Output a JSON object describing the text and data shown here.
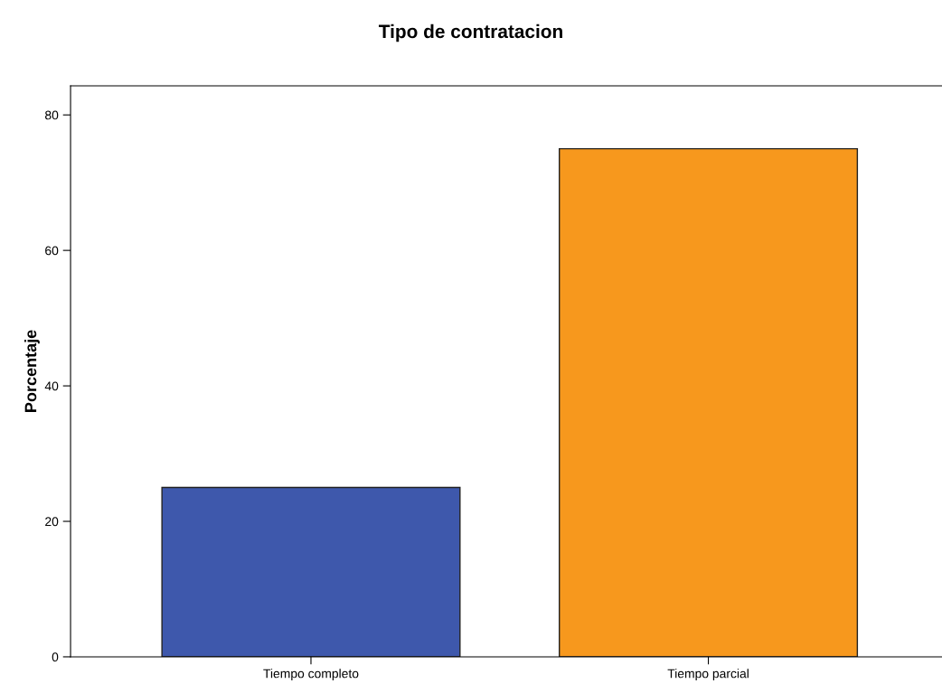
{
  "chart_data": {
    "type": "bar",
    "title": "Tipo de contratacion",
    "ylabel": "Porcentaje",
    "categories": [
      "Tiempo completo",
      "Tiempo parcial"
    ],
    "values": [
      25,
      75
    ],
    "colors": [
      "#3e58ac",
      "#f7981d"
    ],
    "ylim": [
      0,
      84.3
    ],
    "yticks": [
      0,
      20,
      40,
      60,
      80
    ],
    "grid": false,
    "legend": false
  }
}
